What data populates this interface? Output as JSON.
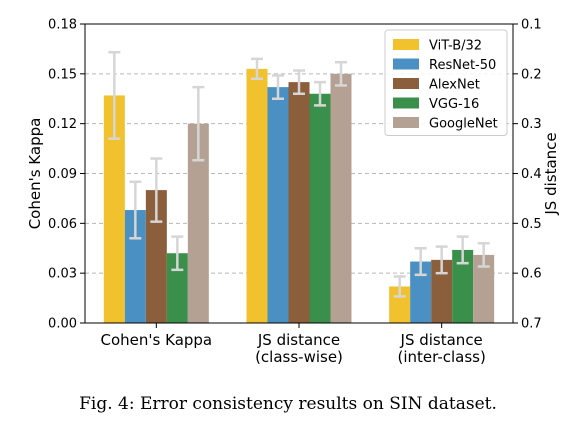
{
  "chart_data": {
    "type": "bar",
    "categories": [
      "Cohen's Kappa",
      "JS distance\n(class-wise)",
      "JS distance\n(inter-class)"
    ],
    "series": [
      {
        "name": "ViT-B/32",
        "color": "#f2c12e",
        "values": [
          0.137,
          0.153,
          0.022
        ],
        "errors": [
          0.026,
          0.006,
          0.006
        ]
      },
      {
        "name": "ResNet-50",
        "color": "#4a90c2",
        "values": [
          0.068,
          0.142,
          0.037
        ],
        "errors": [
          0.017,
          0.007,
          0.008
        ]
      },
      {
        "name": "AlexNet",
        "color": "#8b5e3c",
        "values": [
          0.08,
          0.145,
          0.038
        ],
        "errors": [
          0.019,
          0.007,
          0.008
        ]
      },
      {
        "name": "VGG-16",
        "color": "#3a8f4a",
        "values": [
          0.042,
          0.138,
          0.044
        ],
        "errors": [
          0.01,
          0.007,
          0.008
        ]
      },
      {
        "name": "GoogleNet",
        "color": "#b5a193",
        "values": [
          0.12,
          0.15,
          0.041
        ],
        "errors": [
          0.022,
          0.007,
          0.007
        ]
      }
    ],
    "ylabel": "Cohen's Kappa",
    "ylim": [
      0,
      0.18
    ],
    "yticks": [
      "0.00",
      "0.03",
      "0.06",
      "0.09",
      "0.12",
      "0.15",
      "0.18"
    ],
    "y2label": "JS distance",
    "y2lim": [
      0.7,
      0.1
    ],
    "y2ticks": [
      "0.1",
      "0.2",
      "0.3",
      "0.4",
      "0.5",
      "0.6",
      "0.7"
    ],
    "grid": "horizontal dashed",
    "legend_position": "top-right"
  },
  "caption": "Fig. 4: Error consistency results on SIN dataset."
}
